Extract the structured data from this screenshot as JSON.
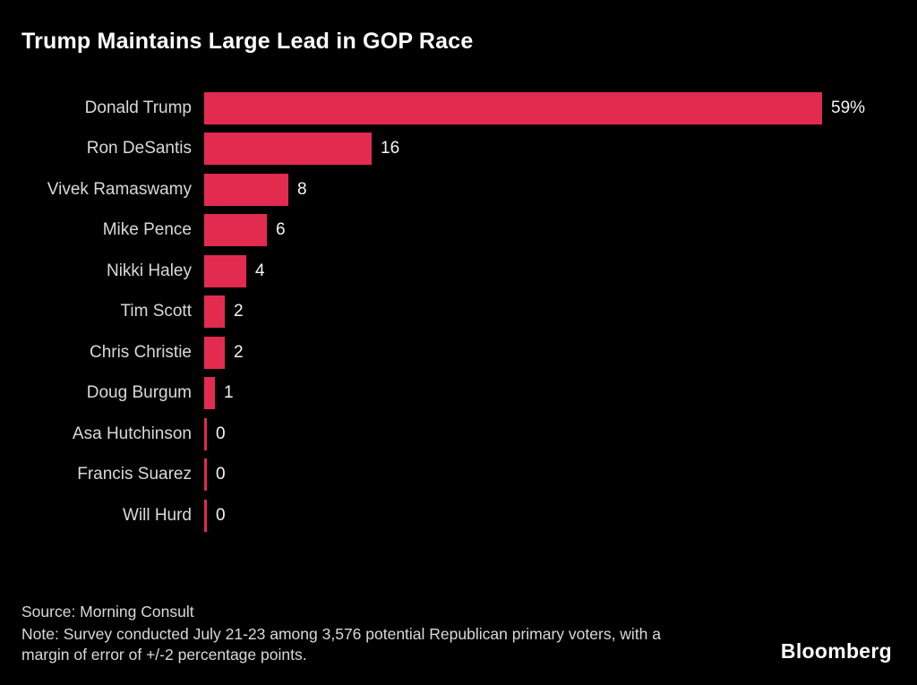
{
  "title": "Trump Maintains Large Lead in GOP Race",
  "colors": {
    "background": "#000000",
    "bar": "#e32a4f",
    "title_text": "#ffffff",
    "label_text": "#d9d9d9",
    "value_text": "#f5f5f5",
    "footer_text": "#d9d9d9"
  },
  "chart_data": {
    "type": "bar",
    "orientation": "horizontal",
    "title": "Trump Maintains Large Lead in GOP Race",
    "categories": [
      "Donald Trump",
      "Ron DeSantis",
      "Vivek Ramaswamy",
      "Mike Pence",
      "Nikki Haley",
      "Tim Scott",
      "Chris Christie",
      "Doug Burgum",
      "Asa Hutchinson",
      "Francis Suarez",
      "Will Hurd"
    ],
    "values": [
      59,
      16,
      8,
      6,
      4,
      2,
      2,
      1,
      0,
      0,
      0
    ],
    "value_labels": [
      "59%",
      "16",
      "8",
      "6",
      "4",
      "2",
      "2",
      "1",
      "0",
      "0",
      "0"
    ],
    "xlabel": "",
    "ylabel": "",
    "xlim": [
      0,
      62
    ],
    "grid": "off",
    "legend": "none",
    "bar_color": "#e32a4f"
  },
  "footer": {
    "source": "Source: Morning Consult",
    "note": "Note: Survey conducted July 21-23 among 3,576 potential Republican primary voters, with a margin of error of +/-2 percentage points.",
    "brand": "Bloomberg"
  }
}
